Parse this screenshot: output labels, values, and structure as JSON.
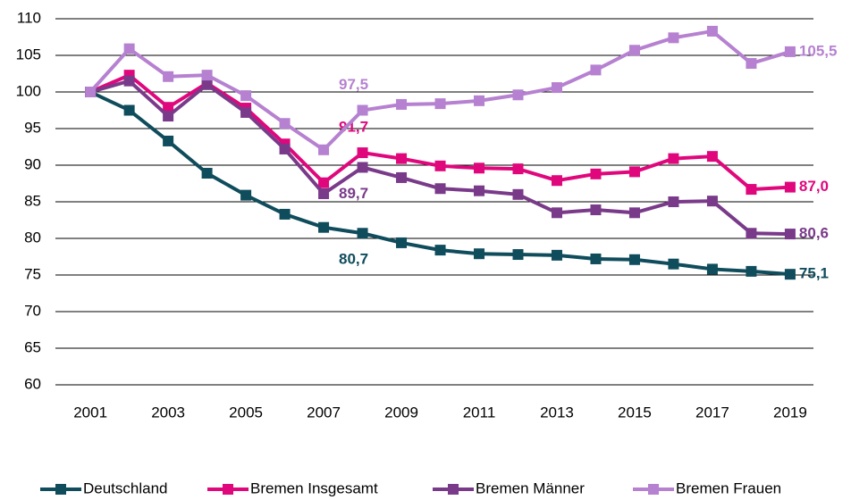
{
  "chart_data": {
    "type": "line",
    "x": [
      2001,
      2002,
      2003,
      2004,
      2005,
      2006,
      2007,
      2008,
      2009,
      2010,
      2011,
      2012,
      2013,
      2014,
      2015,
      2016,
      2017,
      2018,
      2019
    ],
    "xlim": [
      2000.1,
      2019.6
    ],
    "xticks": [
      2001,
      2003,
      2005,
      2007,
      2009,
      2011,
      2013,
      2015,
      2017,
      2019
    ],
    "ylim": [
      60,
      110
    ],
    "yticks": [
      60,
      65,
      70,
      75,
      80,
      85,
      90,
      95,
      100,
      105,
      110
    ],
    "grid": true,
    "legend": "bottom",
    "series": [
      {
        "name": "Deutschland",
        "color": "#0f4c5c",
        "values": [
          100,
          97.5,
          93.3,
          88.9,
          85.9,
          83.3,
          81.5,
          80.7,
          79.4,
          78.4,
          77.9,
          77.8,
          77.7,
          77.2,
          77.1,
          76.5,
          75.8,
          75.5,
          75.1
        ],
        "value_labels": [
          null,
          null,
          null,
          null,
          null,
          null,
          null,
          "80,7",
          null,
          null,
          null,
          null,
          null,
          null,
          null,
          null,
          null,
          null,
          "75,1"
        ]
      },
      {
        "name": "Bremen Insgesamt",
        "color": "#e0077d",
        "values": [
          100,
          102.3,
          97.9,
          101.2,
          97.8,
          92.9,
          87.6,
          91.7,
          90.9,
          89.9,
          89.6,
          89.5,
          87.9,
          88.8,
          89.1,
          90.9,
          91.2,
          86.7,
          87.0
        ],
        "value_labels": [
          null,
          null,
          null,
          null,
          null,
          null,
          null,
          "91,7",
          null,
          null,
          null,
          null,
          null,
          null,
          null,
          null,
          null,
          null,
          "87,0"
        ]
      },
      {
        "name": "Bremen Männer",
        "color": "#7a3a8a",
        "values": [
          100,
          101.5,
          96.7,
          101.0,
          97.2,
          92.2,
          86.1,
          89.7,
          88.3,
          86.8,
          86.5,
          86.0,
          83.5,
          83.9,
          83.5,
          85.0,
          85.1,
          80.7,
          80.6
        ],
        "value_labels": [
          null,
          null,
          null,
          null,
          null,
          null,
          null,
          "89,7",
          null,
          null,
          null,
          null,
          null,
          null,
          null,
          null,
          null,
          null,
          "80,6"
        ]
      },
      {
        "name": "Bremen Frauen",
        "color": "#b681d0",
        "values": [
          100,
          105.9,
          102.1,
          102.3,
          99.5,
          95.7,
          92.1,
          97.5,
          98.3,
          98.4,
          98.8,
          99.6,
          100.6,
          103.0,
          105.7,
          107.4,
          108.3,
          103.9,
          105.5
        ],
        "value_labels": [
          null,
          null,
          null,
          null,
          null,
          null,
          null,
          "97,5",
          null,
          null,
          null,
          null,
          null,
          null,
          null,
          null,
          null,
          null,
          "105,5"
        ]
      }
    ]
  }
}
